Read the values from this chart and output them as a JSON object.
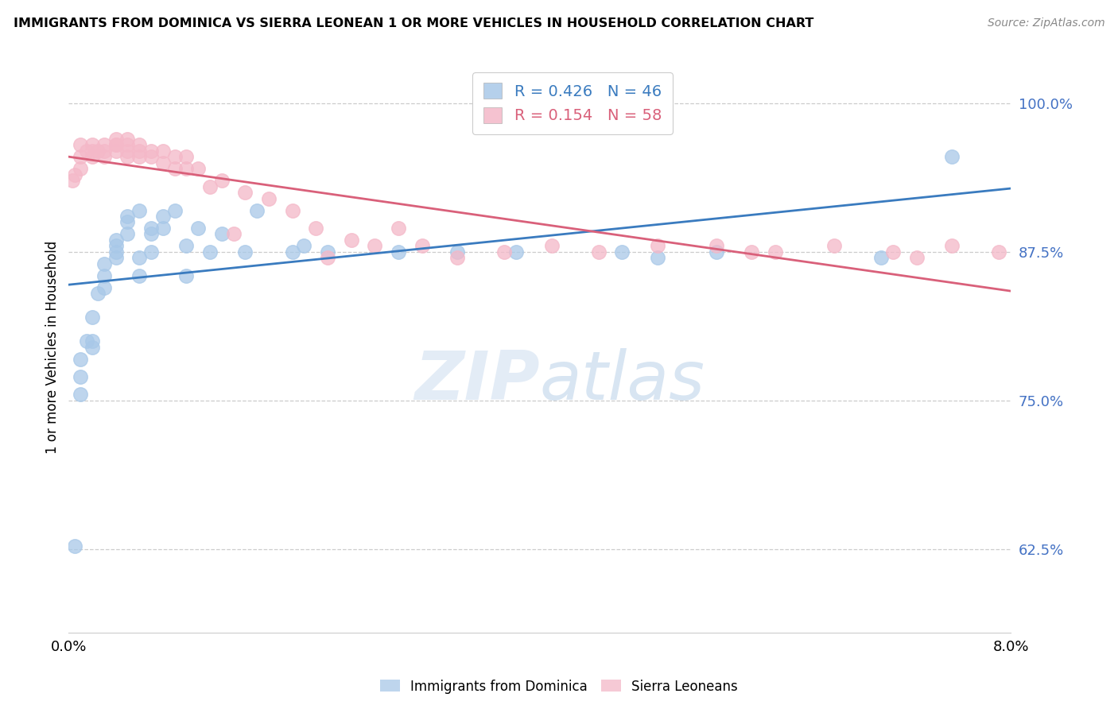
{
  "title": "IMMIGRANTS FROM DOMINICA VS SIERRA LEONEAN 1 OR MORE VEHICLES IN HOUSEHOLD CORRELATION CHART",
  "source": "Source: ZipAtlas.com",
  "ylabel": "1 or more Vehicles in Household",
  "ytick_labels": [
    "62.5%",
    "75.0%",
    "87.5%",
    "100.0%"
  ],
  "ytick_values": [
    0.625,
    0.75,
    0.875,
    1.0
  ],
  "xlim": [
    0.0,
    0.08
  ],
  "ylim": [
    0.555,
    1.035
  ],
  "legend_blue_r": "0.426",
  "legend_blue_n": "46",
  "legend_pink_r": "0.154",
  "legend_pink_n": "58",
  "legend_label_blue": "Immigrants from Dominica",
  "legend_label_pink": "Sierra Leoneans",
  "blue_color": "#a8c8e8",
  "blue_line_color": "#3a7bbf",
  "pink_color": "#f4b8c8",
  "pink_line_color": "#d9607a",
  "blue_x": [
    0.0005,
    0.001,
    0.001,
    0.001,
    0.0015,
    0.002,
    0.002,
    0.002,
    0.0025,
    0.003,
    0.003,
    0.003,
    0.004,
    0.004,
    0.004,
    0.004,
    0.005,
    0.005,
    0.005,
    0.006,
    0.006,
    0.006,
    0.007,
    0.007,
    0.007,
    0.008,
    0.008,
    0.009,
    0.01,
    0.01,
    0.011,
    0.012,
    0.013,
    0.015,
    0.016,
    0.019,
    0.02,
    0.022,
    0.028,
    0.033,
    0.038,
    0.047,
    0.05,
    0.055,
    0.069,
    0.075
  ],
  "blue_y": [
    0.628,
    0.755,
    0.77,
    0.785,
    0.8,
    0.795,
    0.8,
    0.82,
    0.84,
    0.845,
    0.855,
    0.865,
    0.87,
    0.875,
    0.88,
    0.885,
    0.89,
    0.9,
    0.905,
    0.91,
    0.855,
    0.87,
    0.875,
    0.89,
    0.895,
    0.895,
    0.905,
    0.91,
    0.855,
    0.88,
    0.895,
    0.875,
    0.89,
    0.875,
    0.91,
    0.875,
    0.88,
    0.875,
    0.875,
    0.875,
    0.875,
    0.875,
    0.87,
    0.875,
    0.87,
    0.955
  ],
  "pink_x": [
    0.0003,
    0.0005,
    0.001,
    0.001,
    0.001,
    0.0015,
    0.002,
    0.002,
    0.002,
    0.0025,
    0.003,
    0.003,
    0.003,
    0.004,
    0.004,
    0.004,
    0.004,
    0.005,
    0.005,
    0.005,
    0.005,
    0.006,
    0.006,
    0.006,
    0.007,
    0.007,
    0.008,
    0.008,
    0.009,
    0.009,
    0.01,
    0.01,
    0.011,
    0.012,
    0.013,
    0.014,
    0.015,
    0.017,
    0.019,
    0.021,
    0.022,
    0.024,
    0.026,
    0.028,
    0.03,
    0.033,
    0.037,
    0.041,
    0.045,
    0.05,
    0.055,
    0.058,
    0.06,
    0.065,
    0.07,
    0.072,
    0.075,
    0.079
  ],
  "pink_y": [
    0.935,
    0.94,
    0.945,
    0.955,
    0.965,
    0.96,
    0.955,
    0.96,
    0.965,
    0.96,
    0.955,
    0.96,
    0.965,
    0.96,
    0.965,
    0.965,
    0.97,
    0.955,
    0.96,
    0.965,
    0.97,
    0.955,
    0.96,
    0.965,
    0.955,
    0.96,
    0.95,
    0.96,
    0.945,
    0.955,
    0.945,
    0.955,
    0.945,
    0.93,
    0.935,
    0.89,
    0.925,
    0.92,
    0.91,
    0.895,
    0.87,
    0.885,
    0.88,
    0.895,
    0.88,
    0.87,
    0.875,
    0.88,
    0.875,
    0.88,
    0.88,
    0.875,
    0.875,
    0.88,
    0.875,
    0.87,
    0.88,
    0.875
  ]
}
